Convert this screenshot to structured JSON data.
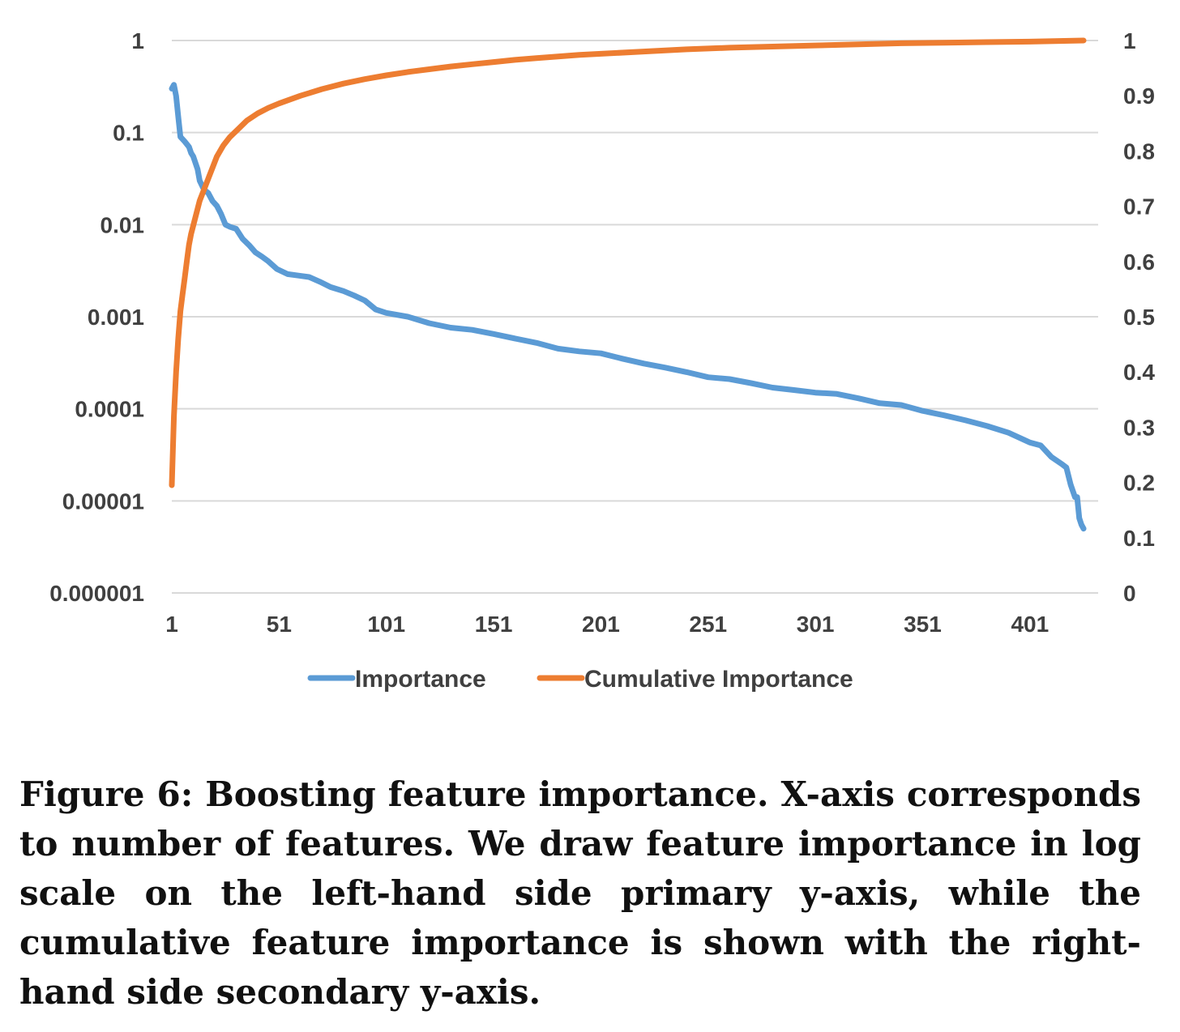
{
  "caption": "Figure 6: Boosting feature importance. X-axis corresponds to number of features. We draw feature importance in log scale on the left-hand side primary y-axis, while the cumulative feature importance is shown with the right-hand side secondary y-axis.",
  "colors": {
    "importance": "#5B9BD5",
    "cumulative": "#ED7D31",
    "grid": "#D9D9D9",
    "text": "#404040"
  },
  "chart_data": {
    "type": "line",
    "title": "",
    "xlabel": "",
    "ylabel": "",
    "y2label": "",
    "x_ticks": [
      "1",
      "51",
      "101",
      "151",
      "201",
      "251",
      "301",
      "351",
      "401"
    ],
    "xlim": [
      1,
      426
    ],
    "y_ticks": [
      "1",
      "0.1",
      "0.01",
      "0.001",
      "0.0001",
      "0.00001",
      "0.000001"
    ],
    "y_scale": "log",
    "ylim": [
      1e-06,
      1
    ],
    "y2_ticks": [
      "1",
      "0.9",
      "0.8",
      "0.7",
      "0.6",
      "0.5",
      "0.4",
      "0.3",
      "0.2",
      "0.1",
      "0"
    ],
    "y2lim": [
      0,
      1
    ],
    "grid": true,
    "legend_position": "bottom",
    "series": [
      {
        "name": "Importance",
        "axis": "left",
        "x": [
          1,
          2,
          3,
          4,
          5,
          7,
          9,
          10,
          11,
          13,
          14,
          16,
          18,
          20,
          22,
          24,
          26,
          28,
          31,
          34,
          37,
          40,
          43,
          46,
          50,
          55,
          60,
          65,
          70,
          75,
          81,
          86,
          91,
          96,
          101,
          111,
          121,
          131,
          141,
          151,
          161,
          171,
          181,
          191,
          201,
          211,
          221,
          231,
          241,
          251,
          261,
          271,
          281,
          291,
          301,
          311,
          321,
          331,
          341,
          351,
          361,
          371,
          381,
          391,
          401,
          406,
          411,
          416,
          418,
          420,
          422,
          423,
          424,
          425,
          426
        ],
        "y": [
          0.3,
          0.33,
          0.25,
          0.15,
          0.09,
          0.08,
          0.07,
          0.06,
          0.055,
          0.04,
          0.03,
          0.024,
          0.022,
          0.018,
          0.016,
          0.013,
          0.01,
          0.0095,
          0.009,
          0.007,
          0.006,
          0.005,
          0.0045,
          0.004,
          0.0033,
          0.0029,
          0.0028,
          0.0027,
          0.0024,
          0.0021,
          0.0019,
          0.0017,
          0.0015,
          0.0012,
          0.0011,
          0.001,
          0.00085,
          0.00076,
          0.00072,
          0.00065,
          0.00058,
          0.00052,
          0.00045,
          0.00042,
          0.0004,
          0.00035,
          0.00031,
          0.00028,
          0.00025,
          0.00022,
          0.00021,
          0.00019,
          0.00017,
          0.00016,
          0.00015,
          0.000145,
          0.00013,
          0.000115,
          0.00011,
          9.5e-05,
          8.5e-05,
          7.5e-05,
          6.5e-05,
          5.5e-05,
          4.3e-05,
          4e-05,
          3e-05,
          2.5e-05,
          2.3e-05,
          1.5e-05,
          1.1e-05,
          1.1e-05,
          6.5e-06,
          5.5e-06,
          5e-06
        ]
      },
      {
        "name": "Cumulative Importance",
        "axis": "right",
        "x": [
          1,
          2,
          3,
          4,
          5,
          6,
          7,
          8,
          9,
          10,
          12,
          14,
          16,
          18,
          20,
          22,
          25,
          28,
          32,
          36,
          41,
          46,
          51,
          61,
          71,
          81,
          91,
          101,
          111,
          121,
          131,
          141,
          151,
          161,
          171,
          181,
          191,
          201,
          221,
          241,
          261,
          281,
          301,
          321,
          341,
          361,
          381,
          401,
          426
        ],
        "y": [
          0.195,
          0.32,
          0.4,
          0.46,
          0.51,
          0.54,
          0.57,
          0.6,
          0.63,
          0.65,
          0.68,
          0.71,
          0.73,
          0.75,
          0.77,
          0.79,
          0.81,
          0.825,
          0.84,
          0.855,
          0.868,
          0.878,
          0.886,
          0.9,
          0.912,
          0.922,
          0.93,
          0.937,
          0.943,
          0.948,
          0.953,
          0.957,
          0.961,
          0.965,
          0.968,
          0.971,
          0.974,
          0.976,
          0.98,
          0.984,
          0.987,
          0.989,
          0.991,
          0.993,
          0.995,
          0.996,
          0.997,
          0.998,
          1.0
        ]
      }
    ]
  }
}
